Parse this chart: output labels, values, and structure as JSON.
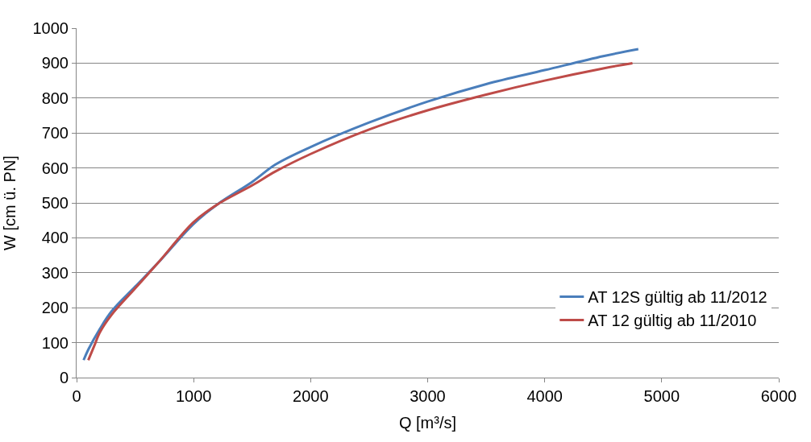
{
  "chart_data": {
    "type": "line",
    "xlabel": "Q [m³/s]",
    "ylabel": "W [cm ü. PN]",
    "xlim": [
      0,
      6000
    ],
    "xticks": [
      0,
      1000,
      2000,
      3000,
      4000,
      5000,
      6000
    ],
    "ylim": [
      0,
      1000
    ],
    "yticks": [
      0,
      100,
      200,
      300,
      400,
      500,
      600,
      700,
      800,
      900,
      1000
    ],
    "grid": "y",
    "legend": "bottom right",
    "marker": "none",
    "line_style": "solid",
    "series": [
      {
        "name": "AT 12S gültig ab 11/2012",
        "color": "#4a7ebb",
        "x": [
          60,
          100,
          200,
          300,
          500,
          700,
          1000,
          1200,
          1500,
          1700,
          2000,
          2500,
          3000,
          3500,
          4000,
          4500,
          4800
        ],
        "values": [
          50,
          80,
          140,
          190,
          260,
          330,
          440,
          495,
          560,
          610,
          660,
          730,
          790,
          840,
          880,
          920,
          940
        ]
      },
      {
        "name": "AT 12 gültig ab 11/2010",
        "color": "#be4b48",
        "x": [
          100,
          150,
          200,
          300,
          500,
          700,
          1000,
          1200,
          1500,
          1700,
          2000,
          2500,
          3000,
          3500,
          4000,
          4500,
          4750
        ],
        "values": [
          50,
          90,
          130,
          180,
          255,
          330,
          445,
          495,
          550,
          590,
          640,
          710,
          765,
          810,
          850,
          885,
          900
        ]
      }
    ]
  }
}
